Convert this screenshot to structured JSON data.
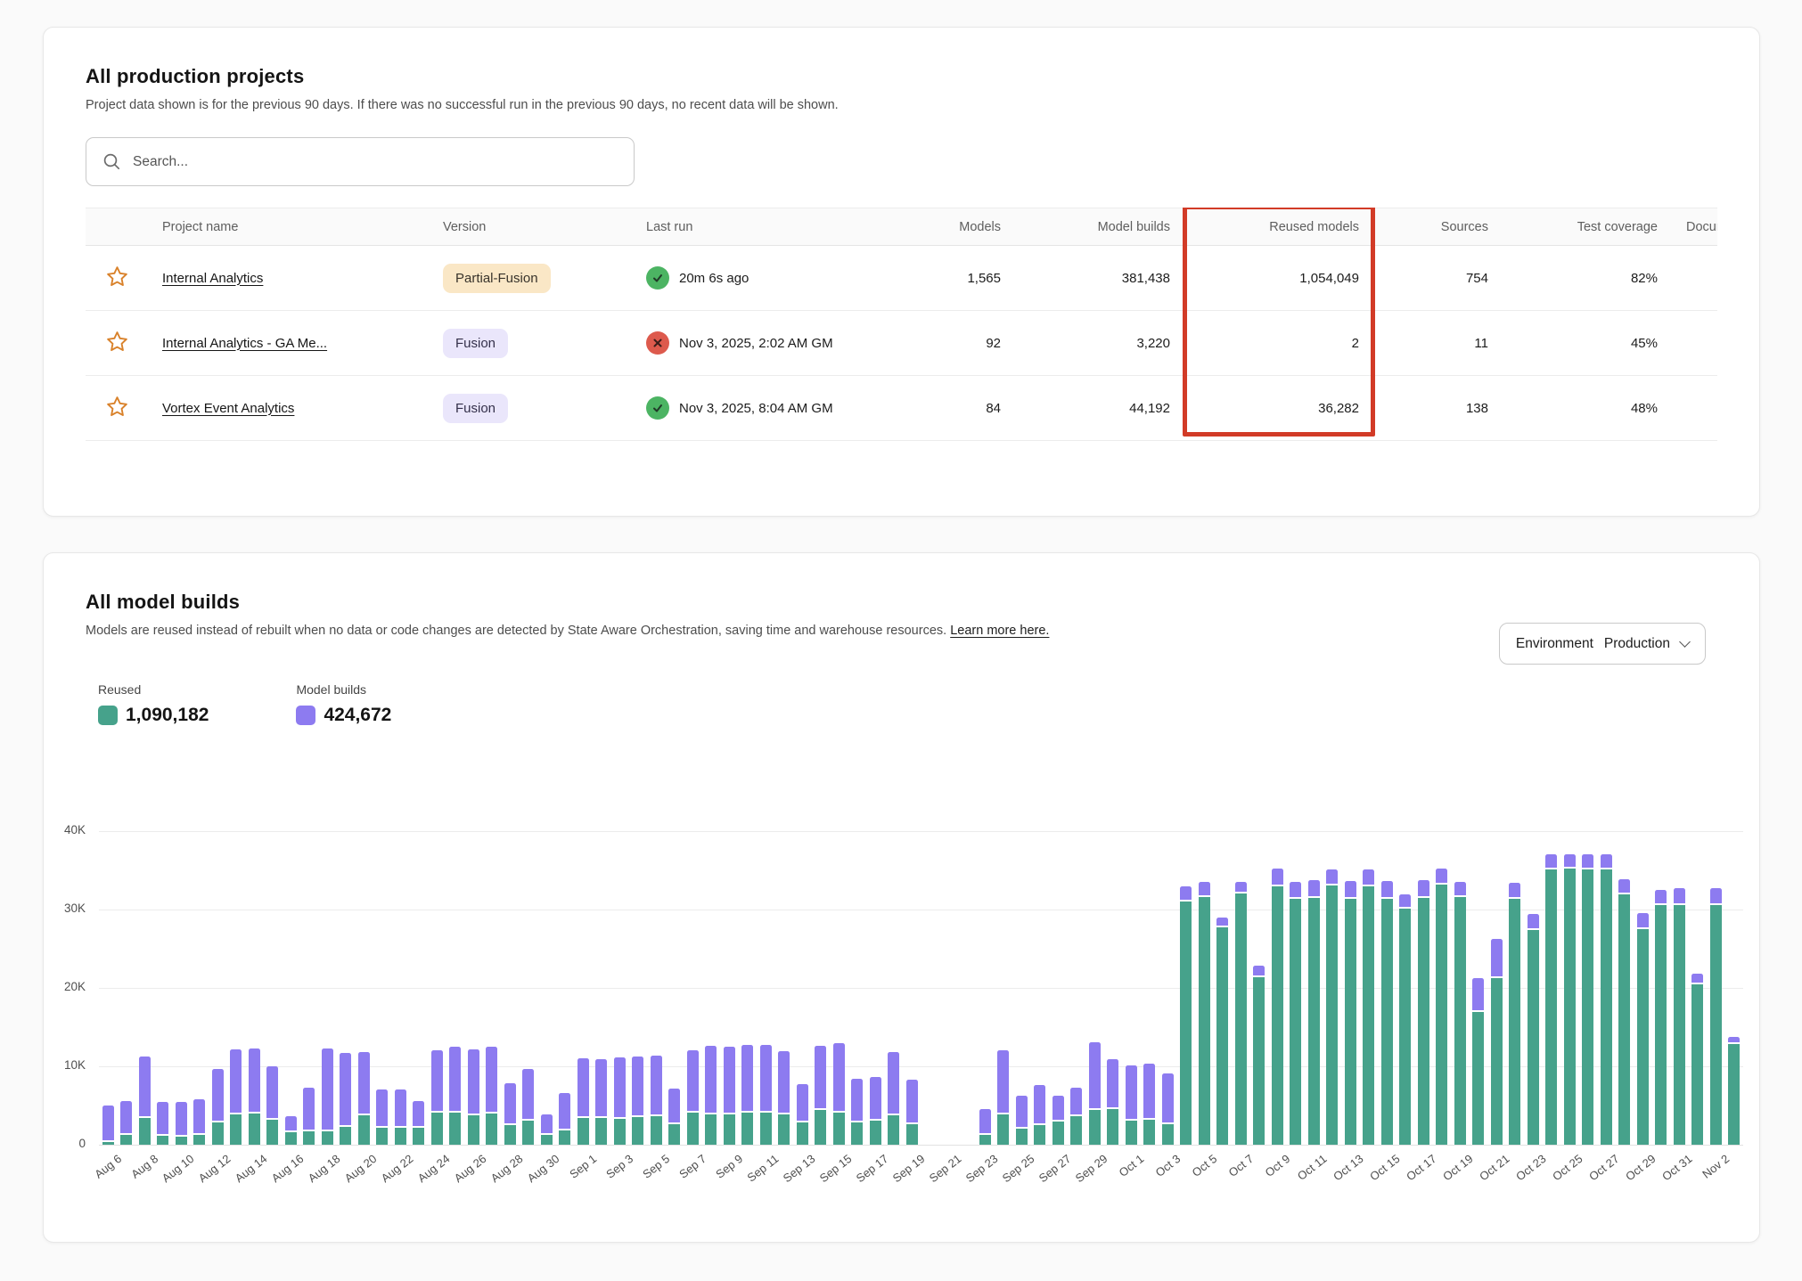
{
  "projects_card": {
    "title": "All production projects",
    "subtitle": "Project data shown is for the previous 90 days. If there was no successful run in the previous 90 days, no recent data will be shown.",
    "search": {
      "placeholder": "Search..."
    },
    "columns": [
      "Project name",
      "Version",
      "Last run",
      "Models",
      "Model builds",
      "Reused models",
      "Sources",
      "Test coverage",
      "Documentation coverage"
    ],
    "rows": [
      {
        "name": "Internal Analytics",
        "version": "Partial-Fusion",
        "version_style": "partial",
        "status": "success",
        "last_run": "20m 6s ago",
        "models": "1,565",
        "model_builds": "381,438",
        "reused_models": "1,054,049",
        "sources": "754",
        "test_coverage": "82%"
      },
      {
        "name": "Internal Analytics - GA Me...",
        "version": "Fusion",
        "version_style": "fusion",
        "status": "error",
        "last_run": "Nov 3, 2025, 2:02 AM GM",
        "models": "92",
        "model_builds": "3,220",
        "reused_models": "2",
        "sources": "11",
        "test_coverage": "45%"
      },
      {
        "name": "Vortex Event Analytics",
        "version": "Fusion",
        "version_style": "fusion",
        "status": "success",
        "last_run": "Nov 3, 2025, 8:04 AM GM",
        "models": "84",
        "model_builds": "44,192",
        "reused_models": "36,282",
        "sources": "138",
        "test_coverage": "48%"
      }
    ],
    "annotation": {
      "column": "Reused models",
      "color": "#d23b27"
    }
  },
  "builds_card": {
    "title": "All model builds",
    "subtitle": "Models are reused instead of rebuilt when no data or code changes are detected by State Aware Orchestration, saving time and warehouse resources.",
    "learn_more": "Learn more here.",
    "env_filter": {
      "label": "Environment",
      "value": "Production"
    },
    "legend": [
      {
        "label": "Reused",
        "value": "1,090,182",
        "color": "#46a28b"
      },
      {
        "label": "Model builds",
        "value": "424,672",
        "color": "#8d7bf0"
      }
    ]
  },
  "chart_data": {
    "type": "bar",
    "stacked": true,
    "title": "All model builds",
    "xlabel": "",
    "ylabel": "",
    "ylim": [
      0,
      40000
    ],
    "grid": true,
    "legend_position": "top-left",
    "y_ticks": [
      "0",
      "10K",
      "20K",
      "30K",
      "40K"
    ],
    "x": [
      "Aug 6",
      "Aug 7",
      "Aug 8",
      "Aug 9",
      "Aug 10",
      "Aug 11",
      "Aug 12",
      "Aug 13",
      "Aug 14",
      "Aug 15",
      "Aug 16",
      "Aug 17",
      "Aug 18",
      "Aug 19",
      "Aug 20",
      "Aug 21",
      "Aug 22",
      "Aug 23",
      "Aug 24",
      "Aug 25",
      "Aug 26",
      "Aug 27",
      "Aug 28",
      "Aug 29",
      "Aug 30",
      "Aug 31",
      "Sep 1",
      "Sep 2",
      "Sep 3",
      "Sep 4",
      "Sep 5",
      "Sep 6",
      "Sep 7",
      "Sep 8",
      "Sep 9",
      "Sep 10",
      "Sep 11",
      "Sep 12",
      "Sep 13",
      "Sep 14",
      "Sep 15",
      "Sep 16",
      "Sep 17",
      "Sep 18",
      "Sep 19",
      "Sep 20",
      "Sep 21",
      "Sep 22",
      "Sep 23",
      "Sep 24",
      "Sep 25",
      "Sep 26",
      "Sep 27",
      "Sep 28",
      "Sep 29",
      "Sep 30",
      "Oct 1",
      "Oct 2",
      "Oct 3",
      "Oct 4",
      "Oct 5",
      "Oct 6",
      "Oct 7",
      "Oct 8",
      "Oct 9",
      "Oct 10",
      "Oct 11",
      "Oct 12",
      "Oct 13",
      "Oct 14",
      "Oct 15",
      "Oct 16",
      "Oct 17",
      "Oct 18",
      "Oct 19",
      "Oct 20",
      "Oct 21",
      "Oct 22",
      "Oct 23",
      "Oct 24",
      "Oct 25",
      "Oct 26",
      "Oct 27",
      "Oct 28",
      "Oct 29",
      "Oct 30",
      "Oct 31",
      "Nov 1",
      "Nov 2",
      "Nov 3"
    ],
    "x_tick_labels": [
      "Aug 6",
      "Aug 8",
      "Aug 10",
      "Aug 12",
      "Aug 14",
      "Aug 16",
      "Aug 18",
      "Aug 20",
      "Aug 22",
      "Aug 24",
      "Aug 26",
      "Aug 28",
      "Aug 30",
      "Sep 1",
      "Sep 3",
      "Sep 5",
      "Sep 7",
      "Sep 9",
      "Sep 11",
      "Sep 13",
      "Sep 15",
      "Sep 17",
      "Sep 19",
      "Sep 21",
      "Sep 23",
      "Sep 25",
      "Sep 27",
      "Sep 29",
      "Oct 1",
      "Oct 3",
      "Oct 5",
      "Oct 7",
      "Oct 9",
      "Oct 11",
      "Oct 13",
      "Oct 15",
      "Oct 17",
      "Oct 19",
      "Oct 21",
      "Oct 23",
      "Oct 25",
      "Oct 27",
      "Oct 29",
      "Oct 31",
      "Nov 2"
    ],
    "series": [
      {
        "name": "Reused",
        "color": "#46a28b",
        "values": [
          300,
          1200,
          3400,
          1100,
          1000,
          1300,
          2800,
          3900,
          4000,
          3200,
          1600,
          1700,
          1700,
          2300,
          3800,
          2200,
          2200,
          2200,
          4100,
          4100,
          3800,
          4000,
          2500,
          3100,
          1200,
          1800,
          3400,
          3400,
          3300,
          3500,
          3600,
          2600,
          4100,
          3900,
          3900,
          4100,
          4100,
          3900,
          2800,
          4400,
          4100,
          2800,
          3100,
          3800,
          2600,
          0,
          0,
          0,
          1300,
          3900,
          2000,
          2500,
          3000,
          3600,
          4400,
          4500,
          3100,
          3200,
          2600,
          31000,
          31600,
          27700,
          32100,
          21400,
          32900,
          31400,
          31500,
          33100,
          31400,
          33000,
          31400,
          30100,
          31500,
          33200,
          31600,
          16900,
          21300,
          31400,
          27400,
          35100,
          35200,
          35100,
          35100,
          31900,
          27500,
          30600,
          30600,
          20500,
          30600,
          12800
        ]
      },
      {
        "name": "Model builds",
        "color": "#8d7bf0",
        "values": [
          4700,
          4400,
          7800,
          4400,
          4500,
          4500,
          6900,
          8300,
          8300,
          6800,
          2000,
          5600,
          10600,
          9400,
          8000,
          4800,
          4800,
          3400,
          8000,
          8400,
          8400,
          8500,
          5300,
          6600,
          2700,
          4800,
          7600,
          7500,
          7800,
          7700,
          7800,
          4600,
          8000,
          8700,
          8600,
          8600,
          8600,
          8000,
          4900,
          8200,
          8800,
          5600,
          5500,
          8000,
          5700,
          0,
          0,
          0,
          3300,
          8200,
          4300,
          5100,
          3200,
          3700,
          8700,
          6400,
          7000,
          7100,
          6500,
          1900,
          1900,
          1300,
          1400,
          1400,
          2300,
          2100,
          2200,
          2000,
          2200,
          2100,
          2200,
          1800,
          2200,
          2000,
          1900,
          4400,
          4900,
          2000,
          2000,
          1900,
          1900,
          1900,
          2000,
          2000,
          2000,
          1900,
          2100,
          1300,
          2100,
          1000
        ]
      }
    ]
  }
}
